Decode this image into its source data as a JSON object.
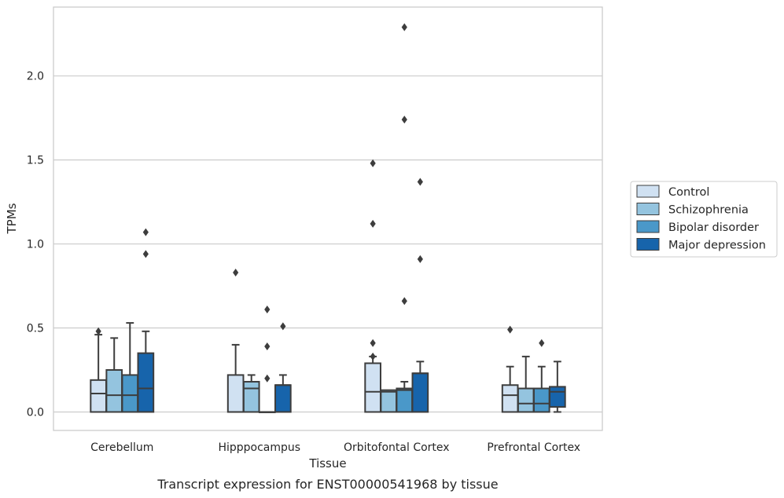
{
  "chart_data": {
    "type": "box",
    "caption": "Transcript expression for ENST00000541968 by tissue",
    "xlabel": "Tissue",
    "ylabel": "TPMs",
    "ylim": [
      -0.11,
      2.41
    ],
    "yticks": [
      "0.0",
      "0.5",
      "1.0",
      "1.5",
      "2.0"
    ],
    "ytick_values": [
      0.0,
      0.5,
      1.0,
      1.5,
      2.0
    ],
    "grid": "horizontal",
    "legend_position": "right",
    "categories": [
      "Cerebellum",
      "Hipppocampus",
      "Orbitofontal Cortex",
      "Prefrontal Cortex"
    ],
    "series": [
      {
        "name": "Control",
        "color": "#d0e1f2",
        "boxes": [
          {
            "whislo": 0.0,
            "q1": 0.0,
            "med": 0.11,
            "q3": 0.19,
            "whishi": 0.46,
            "fliers": [
              0.48
            ]
          },
          {
            "whislo": 0.0,
            "q1": 0.0,
            "med": 0.0,
            "q3": 0.22,
            "whishi": 0.4,
            "fliers": [
              0.83
            ]
          },
          {
            "whislo": 0.0,
            "q1": 0.0,
            "med": 0.12,
            "q3": 0.29,
            "whishi": 0.33,
            "fliers": [
              0.33,
              0.41,
              1.12,
              1.48
            ]
          },
          {
            "whislo": 0.0,
            "q1": 0.0,
            "med": 0.1,
            "q3": 0.16,
            "whishi": 0.27,
            "fliers": [
              0.49
            ]
          }
        ]
      },
      {
        "name": "Schizophrenia",
        "color": "#94c4df",
        "boxes": [
          {
            "whislo": 0.0,
            "q1": 0.0,
            "med": 0.1,
            "q3": 0.25,
            "whishi": 0.44,
            "fliers": []
          },
          {
            "whislo": 0.0,
            "q1": 0.0,
            "med": 0.14,
            "q3": 0.18,
            "whishi": 0.22,
            "fliers": []
          },
          {
            "whislo": 0.0,
            "q1": 0.0,
            "med": 0.12,
            "q3": 0.13,
            "whishi": 0.13,
            "fliers": []
          },
          {
            "whislo": 0.0,
            "q1": 0.0,
            "med": 0.05,
            "q3": 0.14,
            "whishi": 0.33,
            "fliers": []
          }
        ]
      },
      {
        "name": "Bipolar disorder",
        "color": "#4a98c9",
        "boxes": [
          {
            "whislo": 0.0,
            "q1": 0.0,
            "med": 0.1,
            "q3": 0.22,
            "whishi": 0.53,
            "fliers": []
          },
          {
            "whislo": 0.0,
            "q1": 0.0,
            "med": 0.0,
            "q3": 0.0,
            "whishi": 0.0,
            "fliers": [
              0.2,
              0.39,
              0.61
            ]
          },
          {
            "whislo": 0.0,
            "q1": 0.0,
            "med": 0.13,
            "q3": 0.14,
            "whishi": 0.18,
            "fliers": [
              0.66,
              1.74,
              2.29
            ]
          },
          {
            "whislo": 0.0,
            "q1": 0.0,
            "med": 0.05,
            "q3": 0.14,
            "whishi": 0.27,
            "fliers": [
              0.41
            ]
          }
        ]
      },
      {
        "name": "Major depression",
        "color": "#1764ab",
        "boxes": [
          {
            "whislo": 0.0,
            "q1": 0.0,
            "med": 0.14,
            "q3": 0.35,
            "whishi": 0.48,
            "fliers": [
              0.94,
              1.07
            ]
          },
          {
            "whislo": 0.0,
            "q1": 0.0,
            "med": 0.16,
            "q3": 0.16,
            "whishi": 0.22,
            "fliers": [
              0.51
            ]
          },
          {
            "whislo": 0.0,
            "q1": 0.0,
            "med": 0.23,
            "q3": 0.23,
            "whishi": 0.3,
            "fliers": [
              0.91,
              1.37
            ]
          },
          {
            "whislo": 0.0,
            "q1": 0.03,
            "med": 0.12,
            "q3": 0.15,
            "whishi": 0.3,
            "fliers": []
          }
        ]
      }
    ]
  }
}
